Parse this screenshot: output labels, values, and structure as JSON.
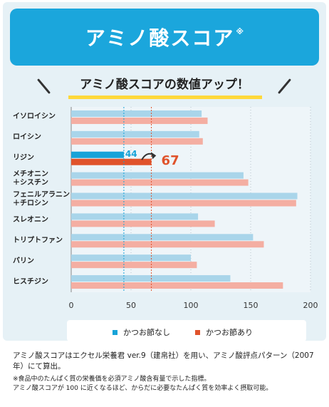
{
  "header": {
    "title": "アミノ酸スコア",
    "title_mark": "※",
    "subtitle": "アミノ酸スコアの数値アップ！"
  },
  "colors": {
    "title_bar": "#1ba6dc",
    "panel_bg": "#e6f1f6",
    "series_without": "#a9d5ea",
    "series_with": "#f4aea2",
    "highlight_without": "#17a3d8",
    "highlight_with": "#e0532b",
    "ref_line_blue": "#17a3d8",
    "ref_line_red": "#e0532b"
  },
  "chart_data": {
    "type": "bar",
    "orientation": "horizontal",
    "categories": [
      [
        "イソロイシン"
      ],
      [
        "ロイシン"
      ],
      [
        "リジン"
      ],
      [
        "メチオニン",
        "＋シスチン"
      ],
      [
        "フェニルアラニン",
        "＋チロシン"
      ],
      [
        "スレオニン"
      ],
      [
        "トリプトファン"
      ],
      [
        "バリン"
      ],
      [
        "ヒスチジン"
      ]
    ],
    "series": [
      {
        "name": "かつお節なし",
        "values": [
          109,
          107,
          44,
          144,
          189,
          106,
          152,
          100,
          133
        ]
      },
      {
        "name": "かつお節あり",
        "values": [
          114,
          110,
          67,
          148,
          188,
          120,
          161,
          105,
          177
        ]
      }
    ],
    "highlight_index": 2,
    "annotations": {
      "from": "44",
      "to": "67"
    },
    "reference_lines": [
      44,
      67
    ],
    "xlim": [
      0,
      200
    ],
    "xticks": [
      "0",
      "50",
      "100",
      "150",
      "200"
    ],
    "grid": "vertical dotted",
    "legend_position": "bottom"
  },
  "legend": {
    "items": [
      "かつお節なし",
      "かつお節あり"
    ]
  },
  "notes": {
    "line1": "アミノ酸スコアはエクセル栄養君 ver.9（建帛社）を用い、アミノ酸評点パターン（2007 年）にて算出。",
    "line2": "※食品中のたんぱく質の栄養価を必須アミノ酸含有量で示した指標。",
    "line3": "アミノ酸スコアが 100 に近くなるほど、からだに必要なたんぱく質を効率よく摂取可能。"
  }
}
